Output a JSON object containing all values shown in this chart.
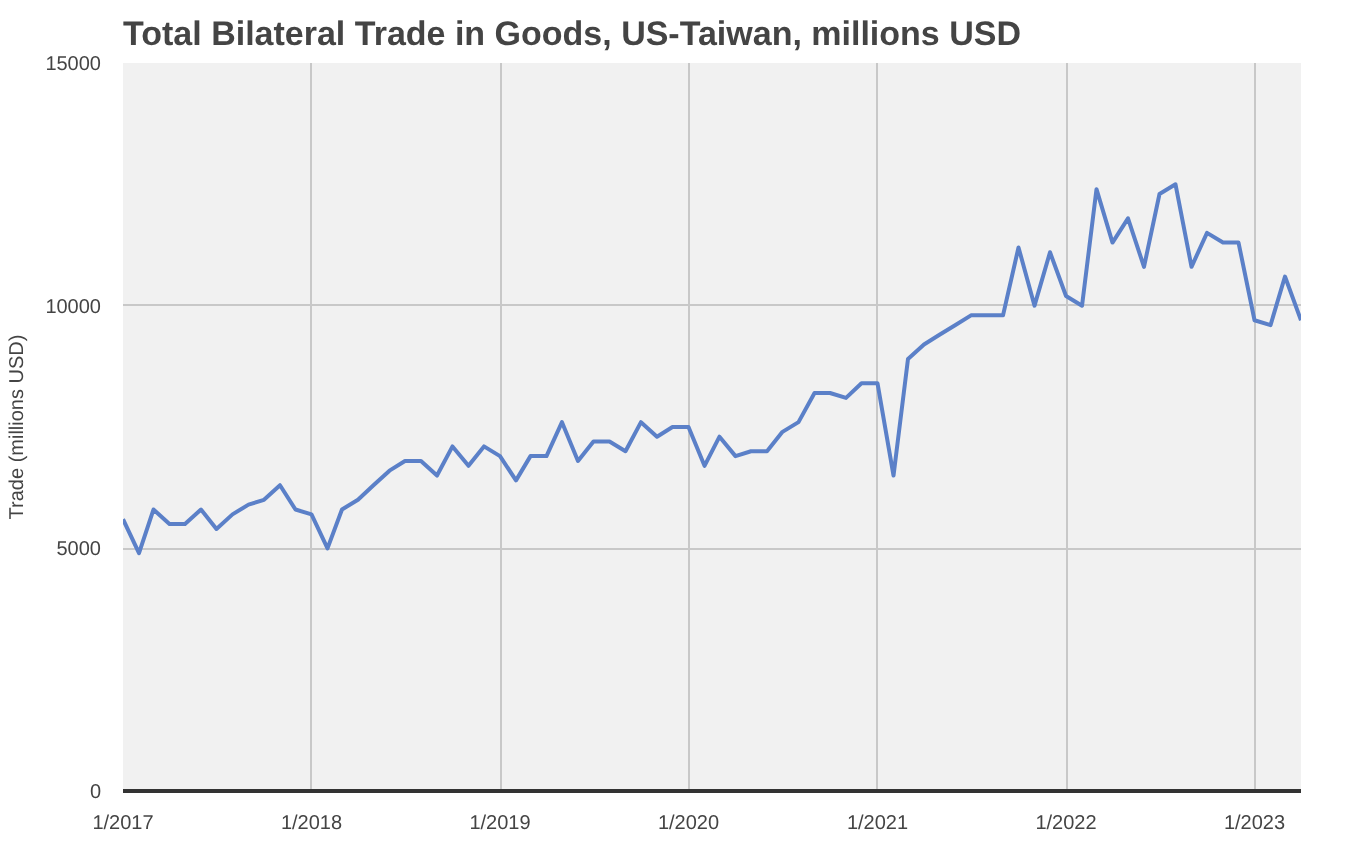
{
  "chart_data": {
    "type": "line",
    "title": "Total Bilateral Trade in Goods, US-Taiwan, millions USD",
    "ylabel": "Trade (millions USD)",
    "x": [
      "2017-01",
      "2017-02",
      "2017-03",
      "2017-04",
      "2017-05",
      "2017-06",
      "2017-07",
      "2017-08",
      "2017-09",
      "2017-10",
      "2017-11",
      "2017-12",
      "2018-01",
      "2018-02",
      "2018-03",
      "2018-04",
      "2018-05",
      "2018-06",
      "2018-07",
      "2018-08",
      "2018-09",
      "2018-10",
      "2018-11",
      "2018-12",
      "2019-01",
      "2019-02",
      "2019-03",
      "2019-04",
      "2019-05",
      "2019-06",
      "2019-07",
      "2019-08",
      "2019-09",
      "2019-10",
      "2019-11",
      "2019-12",
      "2020-01",
      "2020-02",
      "2020-03",
      "2020-04",
      "2020-05",
      "2020-06",
      "2020-07",
      "2020-08",
      "2020-09",
      "2020-10",
      "2020-11",
      "2020-12",
      "2021-01",
      "2021-02",
      "2021-03",
      "2021-04",
      "2021-05",
      "2021-06",
      "2021-07",
      "2021-08",
      "2021-09",
      "2021-10",
      "2021-11",
      "2021-12",
      "2022-01",
      "2022-02",
      "2022-03",
      "2022-04",
      "2022-05",
      "2022-06",
      "2022-07",
      "2022-08",
      "2022-09",
      "2022-10",
      "2022-11",
      "2022-12",
      "2023-01",
      "2023-02",
      "2023-03",
      "2023-04"
    ],
    "series": [
      {
        "color": "#5b80c8",
        "values": [
          5600,
          4900,
          5800,
          5500,
          5500,
          5800,
          5400,
          5700,
          5900,
          6000,
          6300,
          5800,
          5700,
          5000,
          5800,
          6000,
          6300,
          6600,
          6800,
          6800,
          6500,
          7100,
          6700,
          7100,
          6900,
          6400,
          6900,
          6900,
          7600,
          6800,
          7200,
          7200,
          7000,
          7600,
          7300,
          7500,
          7500,
          6700,
          7300,
          6900,
          7000,
          7000,
          7400,
          7600,
          8200,
          8200,
          8100,
          8400,
          8400,
          6500,
          8900,
          9200,
          9400,
          9600,
          9800,
          9800,
          9800,
          11200,
          10000,
          11100,
          10200,
          10000,
          12400,
          11300,
          11800,
          10800,
          12300,
          12500,
          10800,
          11500,
          11300,
          11300,
          9700,
          9600,
          10600,
          9700
        ]
      }
    ],
    "xlim": [
      "2017-01",
      "2023-04"
    ],
    "xticks": [
      {
        "value": "2017-01",
        "label": "1/2017"
      },
      {
        "value": "2018-01",
        "label": "1/2018"
      },
      {
        "value": "2019-01",
        "label": "1/2019"
      },
      {
        "value": "2020-01",
        "label": "1/2020"
      },
      {
        "value": "2021-01",
        "label": "1/2021"
      },
      {
        "value": "2022-01",
        "label": "1/2022"
      },
      {
        "value": "2023-01",
        "label": "1/2023"
      }
    ],
    "ylim": [
      0,
      15000
    ],
    "yticks": [
      0,
      5000,
      10000,
      15000
    ],
    "grid": true,
    "marker": "none",
    "line_style": "solid"
  }
}
